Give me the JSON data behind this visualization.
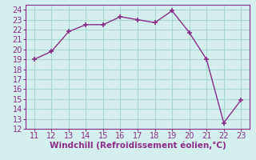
{
  "x": [
    11,
    12,
    13,
    14,
    15,
    16,
    17,
    18,
    19,
    20,
    21,
    22,
    23
  ],
  "y": [
    19,
    19.8,
    21.8,
    22.5,
    22.5,
    23.3,
    23.0,
    22.7,
    23.9,
    21.7,
    19.0,
    12.6,
    14.9
  ],
  "line_color": "#8B2D8B",
  "marker": "+",
  "background_color": "#d4efee",
  "grid_color": "#a8d8d0",
  "xlabel": "Windchill (Refroidissement éolien,°C)",
  "xlabel_color": "#8B2D8B",
  "tick_color": "#8B2D8B",
  "xlim": [
    10.5,
    23.5
  ],
  "ylim": [
    12,
    24.5
  ],
  "xticks": [
    11,
    12,
    13,
    14,
    15,
    16,
    17,
    18,
    19,
    20,
    21,
    22,
    23
  ],
  "yticks": [
    12,
    13,
    14,
    15,
    16,
    17,
    18,
    19,
    20,
    21,
    22,
    23,
    24
  ],
  "spine_color": "#8B2D8B",
  "font_size": 7.0,
  "xlabel_fontsize": 7.5
}
